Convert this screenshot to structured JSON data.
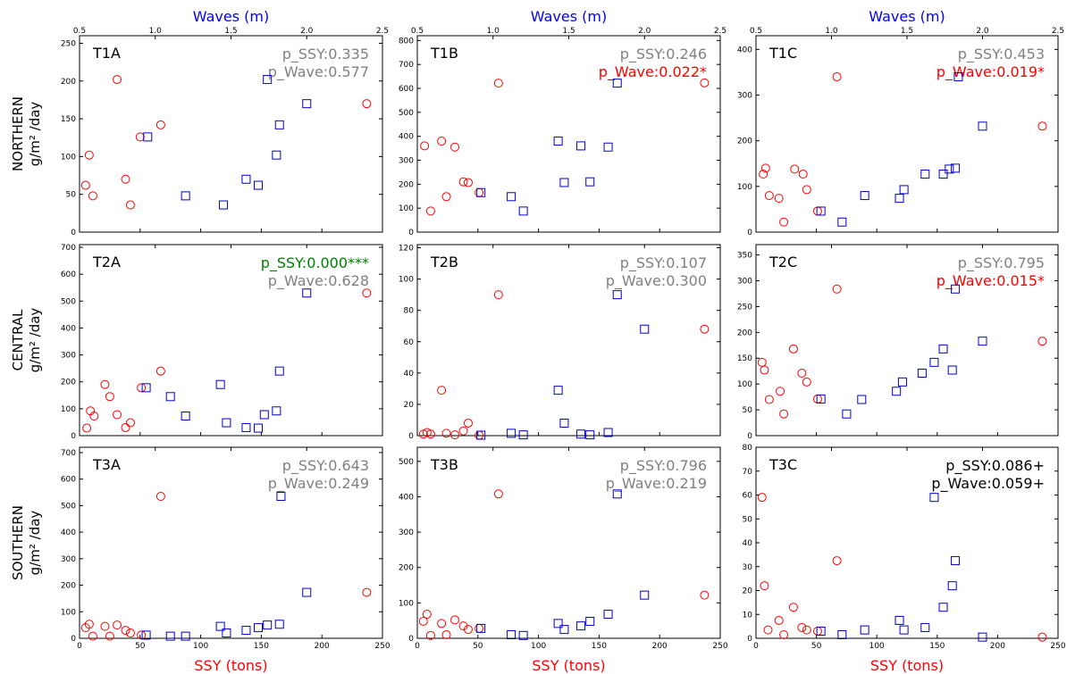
{
  "figure": {
    "top_xlabel": "Waves (m)",
    "bottom_xlabel": "SSY (tons)",
    "unit_ylabel_html": "g/m² /day",
    "colors": {
      "ssy": "#ff0000",
      "wave": "#0000cc",
      "ns": "#808080",
      "sig": "#008000",
      "marginal": "#000000",
      "xlabel": "#ff0000",
      "toplabel": "#0000ff"
    },
    "rows": [
      "NORTHERN",
      "CENTRAL",
      "SOUTHERN"
    ],
    "ssy_axis": {
      "range": [
        0,
        250
      ],
      "ticks": [
        0,
        50,
        100,
        150,
        200,
        250
      ]
    },
    "wave_axis": {
      "range": [
        0.5,
        2.5
      ],
      "ticks": [
        0.5,
        1.0,
        1.5,
        2.0,
        2.5
      ],
      "tick_labels": [
        "0.5",
        "1.0",
        "1.5",
        "2.0",
        "2.5"
      ]
    }
  },
  "chart_data": [
    {
      "type": "scatter",
      "label": "T1A",
      "row": 0,
      "col": 0,
      "ylim": [
        0,
        260
      ],
      "yticks": [
        0,
        50,
        100,
        150,
        200,
        250
      ],
      "p_ssy": "p_SSY:0.335",
      "p_ssy_color": "#808080",
      "p_wave": "p_Wave:0.577",
      "p_wave_color": "#808080",
      "ssy": [
        [
          5,
          62
        ],
        [
          8,
          102
        ],
        [
          11,
          48
        ],
        [
          31,
          202
        ],
        [
          38,
          70
        ],
        [
          42,
          36
        ],
        [
          50,
          126
        ],
        [
          67,
          142
        ],
        [
          237,
          170
        ]
      ],
      "waves": [
        [
          0.95,
          126
        ],
        [
          1.2,
          48
        ],
        [
          1.45,
          36
        ],
        [
          1.6,
          70
        ],
        [
          1.68,
          62
        ],
        [
          1.74,
          202
        ],
        [
          1.8,
          102
        ],
        [
          1.82,
          142
        ],
        [
          2.0,
          170
        ]
      ]
    },
    {
      "type": "scatter",
      "label": "T1B",
      "row": 0,
      "col": 1,
      "ylim": [
        0,
        820
      ],
      "yticks": [
        0,
        100,
        200,
        300,
        400,
        500,
        600,
        700,
        800
      ],
      "p_ssy": "p_SSY:0.246",
      "p_ssy_color": "#808080",
      "p_wave": "p_Wave:0.022*",
      "p_wave_color": "#ff0000",
      "ssy": [
        [
          6,
          360
        ],
        [
          11,
          88
        ],
        [
          20,
          380
        ],
        [
          24,
          148
        ],
        [
          31,
          355
        ],
        [
          38,
          210
        ],
        [
          42,
          207
        ],
        [
          51,
          165
        ],
        [
          67,
          622
        ],
        [
          237,
          623
        ]
      ],
      "waves": [
        [
          0.92,
          165
        ],
        [
          1.12,
          148
        ],
        [
          1.2,
          88
        ],
        [
          1.43,
          380
        ],
        [
          1.47,
          207
        ],
        [
          1.58,
          360
        ],
        [
          1.64,
          210
        ],
        [
          1.76,
          355
        ],
        [
          1.82,
          622
        ]
      ]
    },
    {
      "type": "scatter",
      "label": "T1C",
      "row": 0,
      "col": 2,
      "ylim": [
        0,
        430
      ],
      "yticks": [
        0,
        100,
        200,
        300,
        400
      ],
      "p_ssy": "p_SSY:0.453",
      "p_ssy_color": "#808080",
      "p_wave": "p_Wave:0.019*",
      "p_wave_color": "#ff0000",
      "ssy": [
        [
          6,
          127
        ],
        [
          8,
          140
        ],
        [
          11,
          80
        ],
        [
          19,
          74
        ],
        [
          23,
          22
        ],
        [
          32,
          138
        ],
        [
          39,
          127
        ],
        [
          42,
          93
        ],
        [
          51,
          46
        ],
        [
          67,
          340
        ],
        [
          237,
          232
        ]
      ],
      "waves": [
        [
          0.93,
          46
        ],
        [
          1.07,
          22
        ],
        [
          1.22,
          80
        ],
        [
          1.45,
          74
        ],
        [
          1.48,
          93
        ],
        [
          1.62,
          127
        ],
        [
          1.74,
          127
        ],
        [
          1.78,
          138
        ],
        [
          1.82,
          140
        ],
        [
          1.84,
          340
        ],
        [
          2.0,
          232
        ]
      ]
    },
    {
      "type": "scatter",
      "label": "T2A",
      "row": 1,
      "col": 0,
      "ylim": [
        0,
        710
      ],
      "yticks": [
        0,
        100,
        200,
        300,
        400,
        500,
        600,
        700
      ],
      "p_ssy": "p_SSY:0.000***",
      "p_ssy_color": "#008000",
      "p_wave": "p_Wave:0.628",
      "p_wave_color": "#808080",
      "ssy": [
        [
          6,
          28
        ],
        [
          9,
          92
        ],
        [
          12,
          73
        ],
        [
          21,
          190
        ],
        [
          25,
          145
        ],
        [
          31,
          78
        ],
        [
          38,
          30
        ],
        [
          42,
          48
        ],
        [
          51,
          178
        ],
        [
          67,
          240
        ],
        [
          237,
          530
        ]
      ],
      "waves": [
        [
          0.94,
          178
        ],
        [
          1.1,
          145
        ],
        [
          1.2,
          73
        ],
        [
          1.43,
          190
        ],
        [
          1.47,
          48
        ],
        [
          1.6,
          30
        ],
        [
          1.68,
          28
        ],
        [
          1.72,
          78
        ],
        [
          1.8,
          92
        ],
        [
          1.82,
          240
        ],
        [
          2.0,
          530
        ]
      ]
    },
    {
      "type": "scatter",
      "label": "T2B",
      "row": 1,
      "col": 1,
      "ylim": [
        0,
        122
      ],
      "yticks": [
        0,
        20,
        40,
        60,
        80,
        100,
        120
      ],
      "p_ssy": "p_SSY:0.107",
      "p_ssy_color": "#808080",
      "p_wave": "p_Wave:0.300",
      "p_wave_color": "#808080",
      "ssy": [
        [
          5,
          1
        ],
        [
          8,
          2
        ],
        [
          11,
          1
        ],
        [
          20,
          29
        ],
        [
          24,
          1.5
        ],
        [
          31,
          0.5
        ],
        [
          38,
          3
        ],
        [
          42,
          8
        ],
        [
          51,
          0.3
        ],
        [
          67,
          90
        ],
        [
          237,
          68
        ]
      ],
      "waves": [
        [
          0.92,
          0.3
        ],
        [
          1.12,
          1.5
        ],
        [
          1.2,
          0.5
        ],
        [
          1.43,
          29
        ],
        [
          1.47,
          8
        ],
        [
          1.58,
          1
        ],
        [
          1.64,
          0.5
        ],
        [
          1.76,
          2
        ],
        [
          1.82,
          90
        ],
        [
          2.0,
          68
        ]
      ]
    },
    {
      "type": "scatter",
      "label": "T2C",
      "row": 1,
      "col": 2,
      "ylim": [
        0,
        370
      ],
      "yticks": [
        0,
        50,
        100,
        150,
        200,
        250,
        300,
        350
      ],
      "p_ssy": "p_SSY:0.795",
      "p_ssy_color": "#808080",
      "p_wave": "p_Wave:0.015*",
      "p_wave_color": "#ff0000",
      "ssy": [
        [
          5,
          142
        ],
        [
          7,
          127
        ],
        [
          11,
          70
        ],
        [
          20,
          86
        ],
        [
          23,
          42
        ],
        [
          31,
          168
        ],
        [
          38,
          121
        ],
        [
          42,
          104
        ],
        [
          51,
          71
        ],
        [
          67,
          284
        ],
        [
          237,
          183
        ]
      ],
      "waves": [
        [
          0.93,
          71
        ],
        [
          1.1,
          42
        ],
        [
          1.2,
          70
        ],
        [
          1.43,
          86
        ],
        [
          1.47,
          104
        ],
        [
          1.6,
          121
        ],
        [
          1.68,
          142
        ],
        [
          1.74,
          168
        ],
        [
          1.8,
          127
        ],
        [
          1.82,
          284
        ],
        [
          2.0,
          183
        ]
      ]
    },
    {
      "type": "scatter",
      "label": "T3A",
      "row": 2,
      "col": 0,
      "ylim": [
        0,
        720
      ],
      "yticks": [
        0,
        100,
        200,
        300,
        400,
        500,
        600,
        700
      ],
      "p_ssy": "p_SSY:0.643",
      "p_ssy_color": "#808080",
      "p_wave": "p_Wave:0.249",
      "p_wave_color": "#808080",
      "ssy": [
        [
          5,
          40
        ],
        [
          8,
          53
        ],
        [
          11,
          8
        ],
        [
          21,
          45
        ],
        [
          25,
          8
        ],
        [
          31,
          50
        ],
        [
          38,
          30
        ],
        [
          42,
          20
        ],
        [
          51,
          12
        ],
        [
          67,
          535
        ],
        [
          237,
          173
        ]
      ],
      "waves": [
        [
          0.94,
          12
        ],
        [
          1.1,
          8
        ],
        [
          1.2,
          8
        ],
        [
          1.43,
          45
        ],
        [
          1.47,
          20
        ],
        [
          1.6,
          30
        ],
        [
          1.68,
          40
        ],
        [
          1.74,
          50
        ],
        [
          1.82,
          53
        ],
        [
          1.83,
          535
        ],
        [
          2.0,
          173
        ]
      ]
    },
    {
      "type": "scatter",
      "label": "T3B",
      "row": 2,
      "col": 1,
      "ylim": [
        0,
        540
      ],
      "yticks": [
        0,
        100,
        200,
        300,
        400,
        500
      ],
      "p_ssy": "p_SSY:0.796",
      "p_ssy_color": "#808080",
      "p_wave": "p_Wave:0.219",
      "p_wave_color": "#808080",
      "ssy": [
        [
          5,
          48
        ],
        [
          8,
          68
        ],
        [
          11,
          8
        ],
        [
          20,
          42
        ],
        [
          24,
          10
        ],
        [
          31,
          52
        ],
        [
          38,
          35
        ],
        [
          42,
          25
        ],
        [
          51,
          28
        ],
        [
          67,
          408
        ],
        [
          237,
          122
        ]
      ],
      "waves": [
        [
          0.92,
          28
        ],
        [
          1.12,
          10
        ],
        [
          1.2,
          8
        ],
        [
          1.43,
          42
        ],
        [
          1.47,
          25
        ],
        [
          1.58,
          35
        ],
        [
          1.64,
          48
        ],
        [
          1.76,
          68
        ],
        [
          1.82,
          408
        ],
        [
          2.0,
          122
        ]
      ]
    },
    {
      "type": "scatter",
      "label": "T3C",
      "row": 2,
      "col": 2,
      "ylim": [
        0,
        80
      ],
      "yticks": [
        0,
        10,
        20,
        30,
        40,
        50,
        60,
        70,
        80
      ],
      "p_ssy": "p_SSY:0.086+",
      "p_ssy_color": "#000000",
      "p_wave": "p_Wave:0.059+",
      "p_wave_color": "#000000",
      "ssy": [
        [
          5,
          59
        ],
        [
          7,
          22
        ],
        [
          10,
          3.5
        ],
        [
          19,
          7.5
        ],
        [
          23,
          1.5
        ],
        [
          31,
          13
        ],
        [
          38,
          4.5
        ],
        [
          42,
          3.5
        ],
        [
          51,
          3
        ],
        [
          67,
          32.5
        ],
        [
          237,
          0.5
        ]
      ],
      "waves": [
        [
          0.93,
          3
        ],
        [
          1.07,
          1.5
        ],
        [
          1.22,
          3.5
        ],
        [
          1.45,
          7.5
        ],
        [
          1.48,
          3.5
        ],
        [
          1.62,
          4.5
        ],
        [
          1.68,
          59
        ],
        [
          1.74,
          13
        ],
        [
          1.8,
          22
        ],
        [
          1.82,
          32.5
        ],
        [
          2.0,
          0.5
        ]
      ]
    }
  ]
}
